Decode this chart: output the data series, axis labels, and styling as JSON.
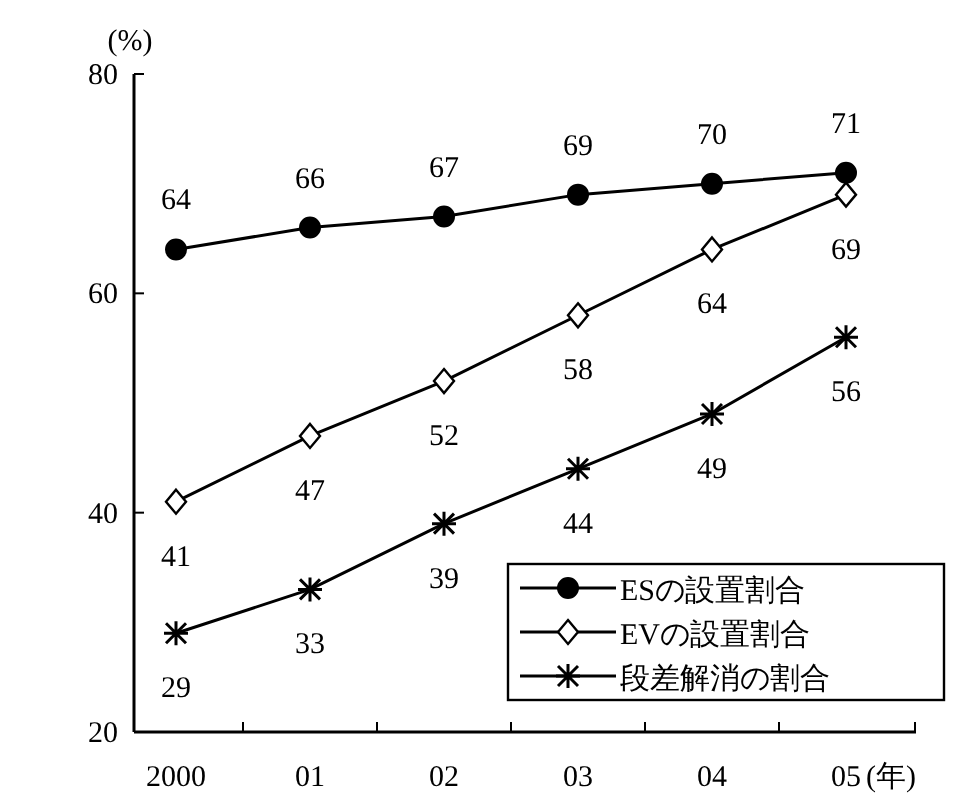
{
  "chart_data": {
    "type": "line",
    "categories": [
      "2000",
      "01",
      "02",
      "03",
      "04",
      "05"
    ],
    "xlabel": "(年)",
    "ylabel": "(%)",
    "ylim": [
      20,
      80
    ],
    "yticks": [
      20,
      40,
      60,
      80
    ],
    "data_labels": true,
    "legend": "bottom right",
    "grid": false,
    "series": [
      {
        "name": "ESの設置割合",
        "color": "#000000",
        "marker": "circle",
        "values": [
          64,
          66,
          67,
          69,
          70,
          71
        ]
      },
      {
        "name": "EVの設置割合",
        "color": "#000000",
        "marker": "diamond",
        "values": [
          41,
          47,
          52,
          58,
          64,
          69
        ]
      },
      {
        "name": "段差解消の割合",
        "color": "#000000",
        "marker": "cross",
        "values": [
          29,
          33,
          39,
          44,
          49,
          56
        ]
      }
    ]
  }
}
